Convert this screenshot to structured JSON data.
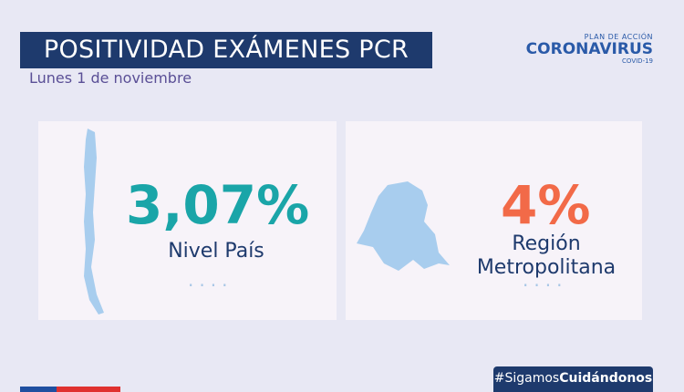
{
  "header": {
    "title": "POSITIVIDAD EXÁMENES PCR",
    "subtitle": "Lunes 1 de noviembre"
  },
  "logo": {
    "top": "PLAN DE ACCIÓN",
    "main": "CORONAVIRUS",
    "sub": "COVID-19"
  },
  "cards": [
    {
      "value": "3,07%",
      "label_lines": [
        "Nivel País"
      ]
    },
    {
      "value": "4%",
      "label_lines": [
        "Región",
        "Metropolitana"
      ]
    }
  ],
  "hashtag": {
    "prefix": "#Sigamos",
    "bold": "Cuidándonos"
  }
}
